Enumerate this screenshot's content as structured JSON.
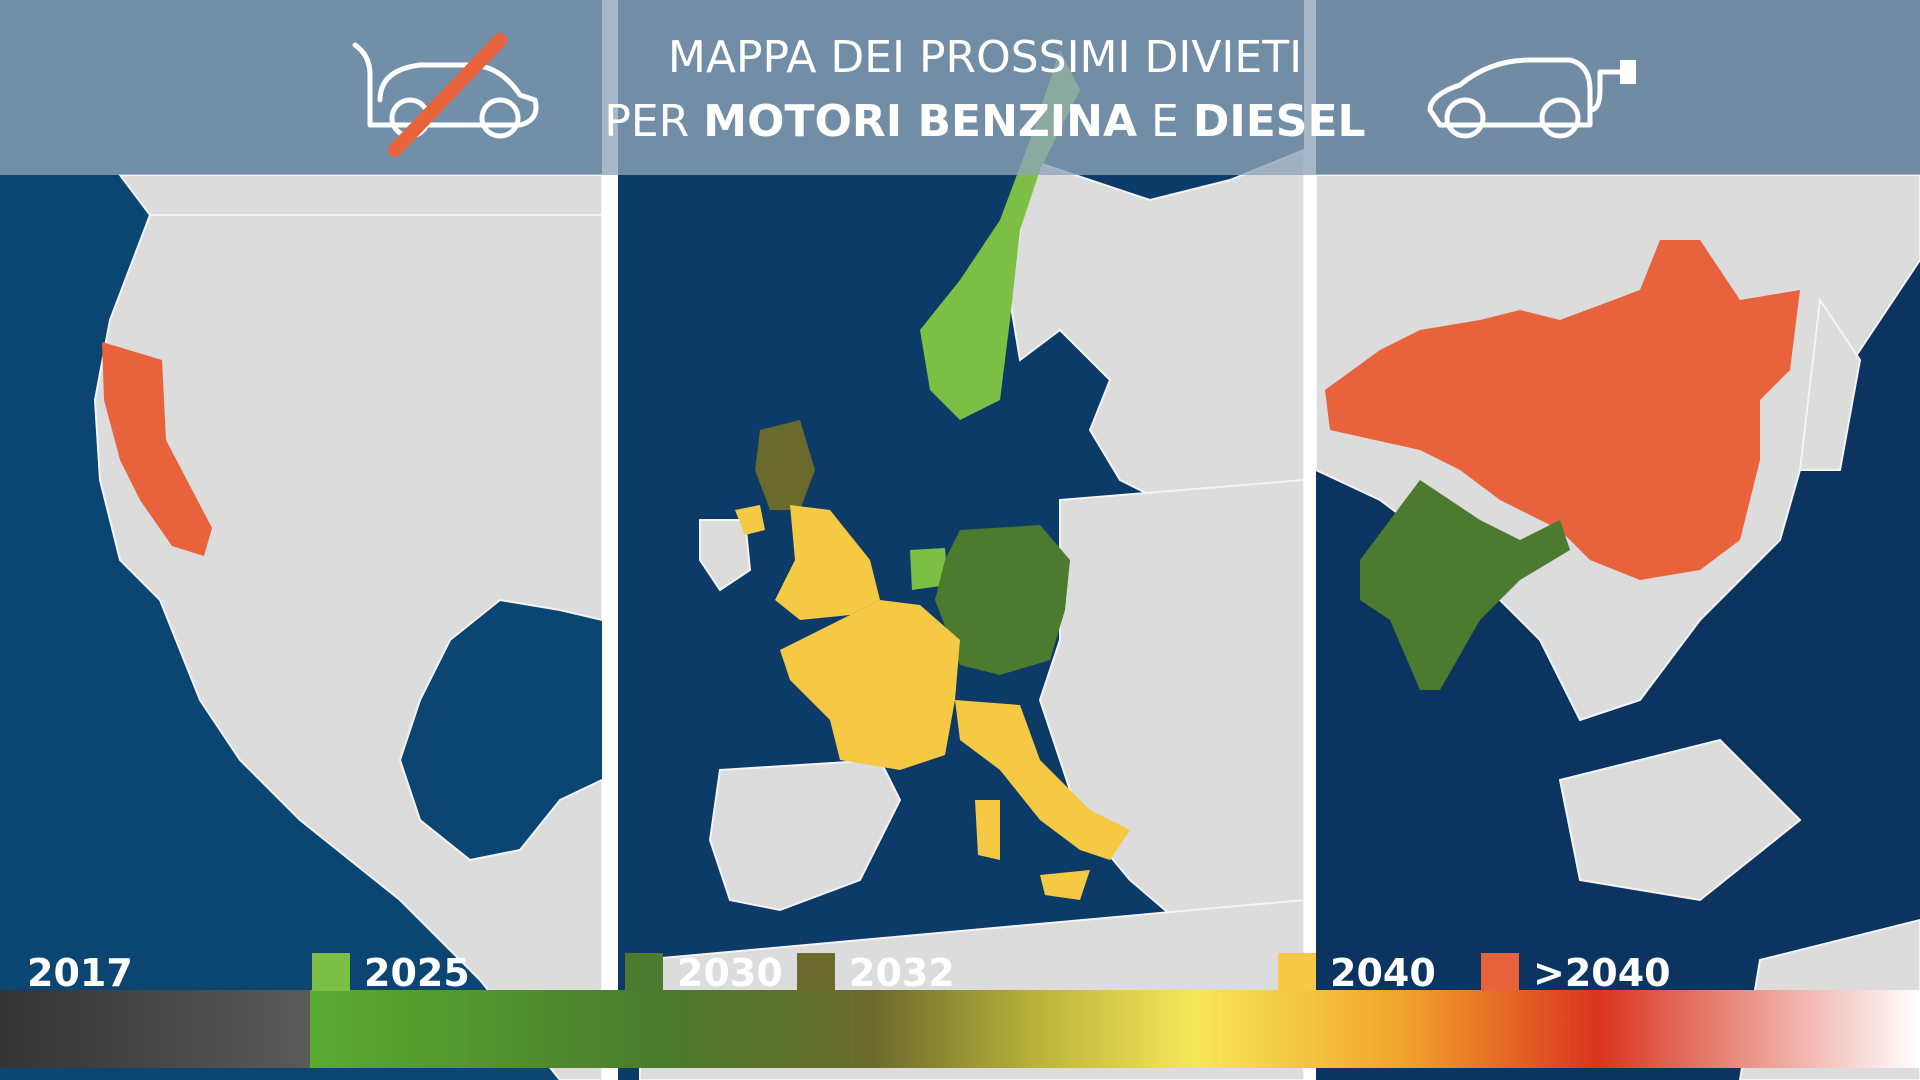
{
  "header": {
    "title_line1": "MAPPA DEI PROSSIMI DIVIETI",
    "title_line2": {
      "prefix": "PER",
      "bold1": "MOTORI BENZINA",
      "middle": "E",
      "bold2": "DIESEL"
    }
  },
  "legend": {
    "start": "2017",
    "items": [
      {
        "label": "2025",
        "color": "#7dbf45"
      },
      {
        "label": "2030",
        "color": "#4c7a2e"
      },
      {
        "label": "2032",
        "color": "#6a6a2c"
      },
      {
        "label": "2040",
        "color": "#f6c945"
      },
      {
        "label": ">2040",
        "color": "#e8623c"
      }
    ]
  }
}
